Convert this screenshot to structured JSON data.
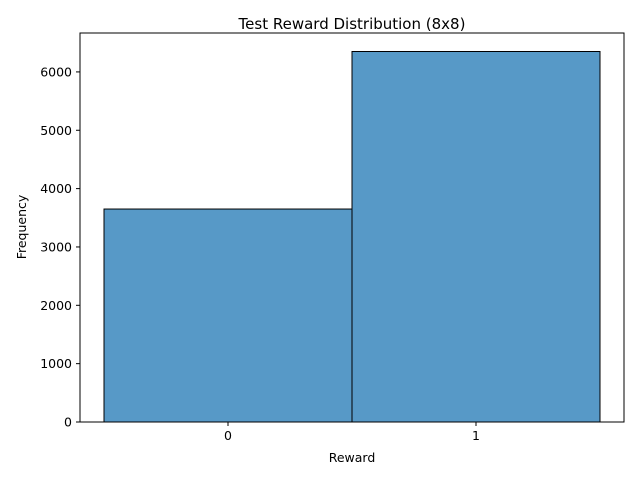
{
  "chart_data": {
    "type": "bar",
    "title": "Test Reward Distribution (8x8)",
    "xlabel": "Reward",
    "ylabel": "Frequency",
    "categories": [
      "0",
      "1"
    ],
    "values": [
      3650,
      6350
    ],
    "ylim": [
      0,
      6667
    ],
    "yticks": [
      0,
      1000,
      2000,
      3000,
      4000,
      5000,
      6000
    ],
    "grid": false,
    "legend": "none",
    "bar_color": "#5799c7",
    "edge_color": "#000000"
  }
}
